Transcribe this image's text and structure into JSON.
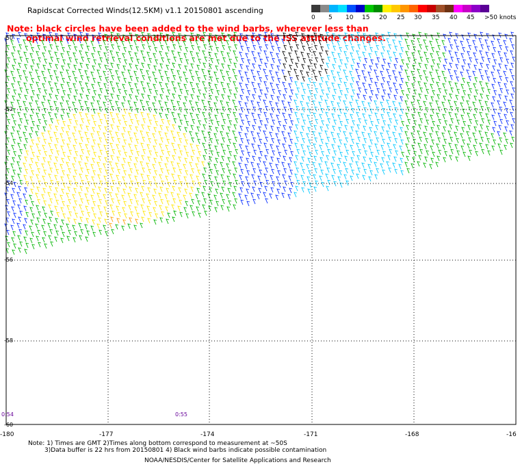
{
  "title": "Rapidscat Corrected Winds(12.5KM) v1.1 20150801 ascending",
  "note": {
    "line1": "Note: black circles have been added to the wind barbs, wherever less than",
    "line2": "optimal wind retrieval conditions are met due to the ISS attitude changes."
  },
  "colorbar": {
    "segments": [
      {
        "color": "#3a3a3a"
      },
      {
        "color": "#8a8a8a"
      },
      {
        "color": "#00b4ff"
      },
      {
        "color": "#00e0ff"
      },
      {
        "color": "#0050ff"
      },
      {
        "color": "#0000c8"
      },
      {
        "color": "#00c800"
      },
      {
        "color": "#008c00"
      },
      {
        "color": "#fff000"
      },
      {
        "color": "#ffc800"
      },
      {
        "color": "#ff9600"
      },
      {
        "color": "#ff6400"
      },
      {
        "color": "#ff0000"
      },
      {
        "color": "#c80000"
      },
      {
        "color": "#a05028"
      },
      {
        "color": "#6e3214"
      },
      {
        "color": "#ff00ff"
      },
      {
        "color": "#c800c8"
      },
      {
        "color": "#8c00c8"
      },
      {
        "color": "#5a0096"
      }
    ],
    "labels": [
      "0",
      "5",
      "10",
      "15",
      "20",
      "25",
      "30",
      "35",
      "40",
      "45",
      ">50 knots"
    ]
  },
  "map": {
    "lon_labels": [
      "-180",
      "-177",
      "-174",
      "-171",
      "-168",
      "-16"
    ],
    "lat_labels": [
      "-50",
      "-52",
      "-54",
      "-56",
      "-58",
      "-60"
    ],
    "time_labels": [
      "0:54",
      "0:55"
    ]
  },
  "footer": {
    "line1": "Note: 1) Times are GMT 2)Times along bottom correspond to measurement at ~50S",
    "line2": "3)Data buffer is 22 hrs from 20150801 4) Black wind barbs indicate possible contamination",
    "line3": "NOAA/NESDIS/Center for Satellite Applications and Research"
  },
  "wind_regions": {
    "colors": {
      "yellow": "#ffe600",
      "orange": "#ffa000",
      "green": "#00b400",
      "blue": "#0028ff",
      "cyan": "#00c8ff",
      "black": "#000000"
    }
  }
}
